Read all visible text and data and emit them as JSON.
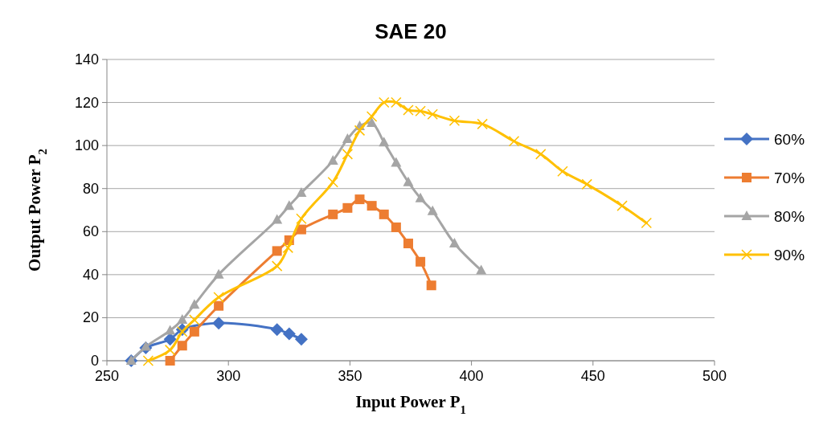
{
  "chart_data": {
    "type": "line",
    "title": "SAE 20",
    "xlabel": "Input Power P$_{1}$",
    "ylabel": "Output Power P$_{2}$",
    "xlim": [
      250,
      500
    ],
    "xticks": [
      250,
      300,
      350,
      400,
      450,
      500
    ],
    "ylim": [
      0,
      140
    ],
    "yticks": [
      0,
      20,
      40,
      60,
      80,
      100,
      120,
      140
    ],
    "grid": "y",
    "legend": "right",
    "series": [
      {
        "name": "60%",
        "color": "#4472c4",
        "marker": "diamond",
        "x": [
          260,
          266,
          276,
          281,
          296,
          320,
          325,
          330
        ],
        "values": [
          0,
          6,
          10,
          14.5,
          17.5,
          14.5,
          12.5,
          10
        ]
      },
      {
        "name": "70%",
        "color": "#ed7d31",
        "marker": "square",
        "x": [
          276,
          281,
          286,
          296,
          320,
          325,
          330,
          343,
          349,
          354,
          359,
          364,
          369,
          374,
          379,
          383.5
        ],
        "values": [
          0,
          7,
          13.5,
          25.5,
          51,
          56,
          61,
          68,
          71,
          75,
          72,
          68,
          62,
          54.5,
          46,
          35
        ]
      },
      {
        "name": "80%",
        "color": "#a5a5a5",
        "marker": "triangle",
        "x": [
          260,
          266,
          276,
          281,
          286,
          296,
          320,
          325,
          330,
          343,
          349,
          354,
          359,
          364,
          369,
          374,
          379,
          384,
          393,
          404
        ],
        "values": [
          0,
          6.5,
          14,
          19,
          26,
          40,
          65.5,
          72,
          78,
          93,
          103,
          109,
          110.5,
          101.5,
          92,
          83,
          75.5,
          69.5,
          54.5,
          42
        ]
      },
      {
        "name": "90%",
        "color": "#ffc000",
        "marker": "cross",
        "x": [
          267,
          276,
          281,
          286,
          296,
          320,
          324.5,
          330,
          343,
          349,
          354,
          359,
          364,
          369,
          374,
          379,
          384,
          393,
          404.5,
          417.5,
          428.5,
          437.5,
          447.5,
          462,
          472
        ],
        "values": [
          0,
          5,
          13.5,
          19,
          29.5,
          44,
          52.5,
          66,
          83,
          96,
          107,
          113.5,
          120,
          120,
          116.5,
          116,
          114.5,
          111.5,
          110,
          102,
          96,
          88,
          82,
          72,
          64
        ]
      }
    ]
  }
}
